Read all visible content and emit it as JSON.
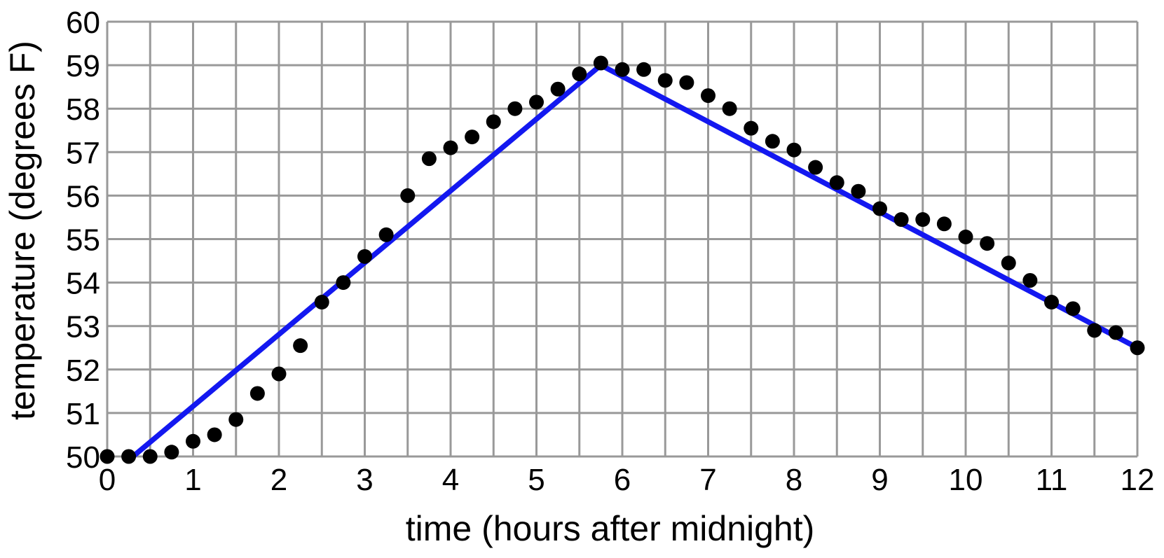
{
  "chart_data": {
    "type": "scatter",
    "title": "",
    "xlabel": "time (hours after midnight)",
    "ylabel": "temperature (degrees F)",
    "xlim": [
      0,
      12
    ],
    "ylim": [
      50,
      60
    ],
    "x_ticks": [
      0,
      1,
      2,
      3,
      4,
      5,
      6,
      7,
      8,
      9,
      10,
      11,
      12
    ],
    "y_ticks": [
      50,
      51,
      52,
      53,
      54,
      55,
      56,
      57,
      58,
      59,
      60
    ],
    "x_grid_step": 0.5,
    "y_grid_step": 1,
    "grid": {
      "on": true,
      "color": "#999999",
      "stroke_width": 3
    },
    "legend": {
      "shown": false
    },
    "series": [
      {
        "name": "observed-temperature-points",
        "kind": "scatter",
        "marker": "circle",
        "marker_color": "#000000",
        "marker_radius": 10.5,
        "points": [
          [
            0,
            50.0
          ],
          [
            0.25,
            50.0
          ],
          [
            0.5,
            50.0
          ],
          [
            0.75,
            50.1
          ],
          [
            1,
            50.35
          ],
          [
            1.25,
            50.5
          ],
          [
            1.5,
            50.85
          ],
          [
            1.75,
            51.45
          ],
          [
            2,
            51.9
          ],
          [
            2.25,
            52.55
          ],
          [
            2.5,
            53.55
          ],
          [
            2.75,
            54.0
          ],
          [
            3,
            54.6
          ],
          [
            3.25,
            55.1
          ],
          [
            3.5,
            56.0
          ],
          [
            3.75,
            56.85
          ],
          [
            4,
            57.1
          ],
          [
            4.25,
            57.35
          ],
          [
            4.5,
            57.7
          ],
          [
            4.75,
            58.0
          ],
          [
            5,
            58.15
          ],
          [
            5.25,
            58.45
          ],
          [
            5.5,
            58.8
          ],
          [
            5.75,
            59.05
          ],
          [
            6,
            58.9
          ],
          [
            6.25,
            58.9
          ],
          [
            6.5,
            58.65
          ],
          [
            6.75,
            58.6
          ],
          [
            7,
            58.3
          ],
          [
            7.25,
            58.0
          ],
          [
            7.5,
            57.55
          ],
          [
            7.75,
            57.25
          ],
          [
            8,
            57.05
          ],
          [
            8.25,
            56.65
          ],
          [
            8.5,
            56.3
          ],
          [
            8.75,
            56.1
          ],
          [
            9,
            55.7
          ],
          [
            9.25,
            55.45
          ],
          [
            9.5,
            55.45
          ],
          [
            9.75,
            55.35
          ],
          [
            10,
            55.05
          ],
          [
            10.25,
            54.9
          ],
          [
            10.5,
            54.45
          ],
          [
            10.75,
            54.05
          ],
          [
            11,
            53.55
          ],
          [
            11.25,
            53.4
          ],
          [
            11.5,
            52.9
          ],
          [
            11.75,
            52.85
          ],
          [
            12,
            52.5
          ]
        ]
      },
      {
        "name": "piecewise-linear-model",
        "kind": "line",
        "line_color": "#1318f0",
        "stroke_width": 7.5,
        "points": [
          [
            0.3,
            50.0
          ],
          [
            5.75,
            59.0
          ],
          [
            12,
            52.5
          ]
        ]
      }
    ]
  }
}
